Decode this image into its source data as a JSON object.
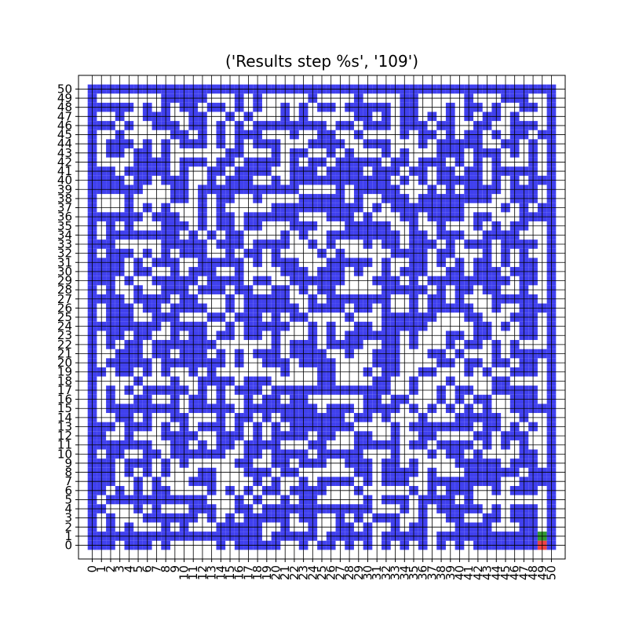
{
  "chart_data": {
    "type": "heatmap",
    "title": "('Results step %s', '109')",
    "xlabel": "",
    "ylabel": "",
    "xlim": [
      -1.5,
      51.5
    ],
    "ylim": [
      -1.5,
      51.5
    ],
    "x_ticks": [
      "0",
      "1",
      "2",
      "3",
      "4",
      "5",
      "6",
      "7",
      "8",
      "9",
      "10",
      "11",
      "12",
      "13",
      "14",
      "15",
      "16",
      "17",
      "18",
      "19",
      "20",
      "21",
      "22",
      "23",
      "24",
      "25",
      "26",
      "27",
      "28",
      "29",
      "30",
      "31",
      "32",
      "33",
      "34",
      "35",
      "36",
      "37",
      "38",
      "39",
      "40",
      "41",
      "42",
      "43",
      "44",
      "45",
      "46",
      "47",
      "48",
      "49",
      "50"
    ],
    "y_ticks": [
      "0",
      "1",
      "2",
      "3",
      "4",
      "5",
      "6",
      "7",
      "8",
      "9",
      "10",
      "11",
      "12",
      "13",
      "14",
      "15",
      "16",
      "17",
      "18",
      "19",
      "20",
      "21",
      "22",
      "23",
      "24",
      "25",
      "26",
      "27",
      "28",
      "29",
      "30",
      "31",
      "32",
      "33",
      "34",
      "35",
      "36",
      "37",
      "38",
      "39",
      "40",
      "41",
      "42",
      "43",
      "44",
      "45",
      "46",
      "47",
      "48",
      "49",
      "50"
    ],
    "grid": true,
    "colors": {
      "wall": "#4040ee",
      "open": "#ffffff",
      "start": "#ee4444",
      "goal": "#339933",
      "gridline": "#000000"
    },
    "legend": "none",
    "cell_legend": {
      "1": "wall (blue)",
      "0": "open (white)",
      "S": "start (red)",
      "G": "goal (green)"
    },
    "rows_top_to_bottom": [
      "111111111111111111111111111111111111111111111111111",
      "100000001111100010100000100001000011000001000111001",
      "111110101011011010100101011011111011000101101001101",
      "100100111001100101000101000001101011010101011010001",
      "111010011101101010111111110110111011101100110011101",
      "100100000110101011100010011001000010110101101011011",
      "101110101011101010111000111100111000101111100110101",
      "101101101000000110001011001010001010001110111010101",
      "100001111011101101111010110111110110111010101000101",
      "111011111010011011110011101111011101101101101111101",
      "111101101110010111001011111111111010101111101010111",
      "111111000110111111111110000101111100010101111011101",
      "100010000110101100100001111101001110111111110011101",
      "100010101000101000001111111111010111111110000101011",
      "111111011100101101111110001110100011011110110001111",
      "101010001110101101100011100011111001001000101011001",
      "101111111101010110000101001111111101101110011110001",
      "111000001111101110111100101000101101110101110111101",
      "101110101011100101101000010100000111101100010101001",
      "111101011100111110101110001111101001101010110101101",
      "111101100101110010000111011101001011100110111011101",
      "111010011111011110110011111100011101011111111101101",
      "101001001110111011001101011000001111101011011001001",
      "111101111011000101111100101111111001011010001111101",
      "101110110111100101111110111101101001011111001001111",
      "101110011100011011101011000010001111110001100011101",
      "111111110111100101111100101001101111100000110101101",
      "101101100101101101101000101011111101000110110001101",
      "101011011111110000001011101111001101000101101010001",
      "100111011011101010111011110010011100011010001011111",
      "101111101111111010011101111000011100001101101101101",
      "110110101001010000000100011000101100110001010011101",
      "100001000100111101110000011000011001000100001100001",
      "101010111110101011101111111111111001001011001111101",
      "101001100101101001011011000000110110001010110011101",
      "101111111101111101111111101110111101010101010011111",
      "100110100110001011010111111101101000100011111001001",
      "111011101010111010101011111110000101111111011010101",
      "110010001111001110101111011001100100110000110111001",
      "111111100110101101111000110001111101101111010101001",
      "101100110111111001101111011111000100010110100001101",
      "111011101010000011001101110011101101000011111011101",
      "111010101000110001110110000001101111010001111110111",
      "111001010001110000101001011110101110011111111001111",
      "110101011000010101011011110001000001010111001011101",
      "101111111111100010100101100000101110111101000000001",
      "110001010001110011011111111111100010101111101011101",
      "101000111111010101111101100101011100100110011011101",
      "101010001010001111100100100110100101100011110001101",
      "111111111111111111101111101111101111101111111111101",
      "111011101000001011111001011010101010101010111111101"
    ],
    "special_cells": [
      {
        "label": "goal",
        "x": 49,
        "y": 1
      },
      {
        "label": "start",
        "x": 49,
        "y": 0
      }
    ]
  }
}
